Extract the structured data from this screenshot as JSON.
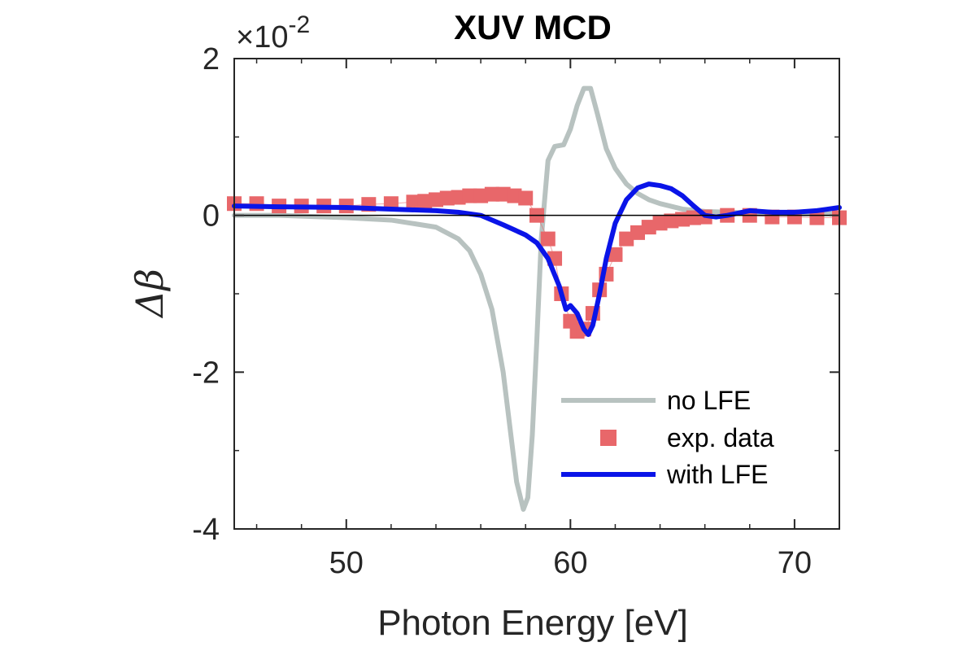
{
  "chart_data": {
    "type": "line",
    "title": "XUV MCD",
    "xlabel": "Photon Energy [eV]",
    "ylabel": "Δβ",
    "y_exponent_base": "×10",
    "y_exponent_power": "-2",
    "xlim": [
      45,
      72
    ],
    "ylim": [
      -4,
      2
    ],
    "xticks": [
      50,
      60,
      70
    ],
    "xtick_labels": [
      "50",
      "60",
      "70"
    ],
    "yticks": [
      2,
      0,
      -2,
      -4
    ],
    "ytick_labels": [
      "2",
      "0",
      "-2",
      "-4"
    ],
    "grid": false,
    "legend_position": "bottom-right",
    "zero_line": true,
    "series": [
      {
        "name": "no LFE",
        "style": "line",
        "color": "#b8c2c0",
        "x": [
          45,
          47,
          50,
          52,
          54,
          55,
          55.5,
          56,
          56.5,
          57,
          57.3,
          57.6,
          57.9,
          58.1,
          58.3,
          58.5,
          58.7,
          59.0,
          59.3,
          59.7,
          60.0,
          60.3,
          60.6,
          60.9,
          61.2,
          61.6,
          62.0,
          62.5,
          63.0,
          63.5,
          64.0,
          65.0,
          66.0,
          68.0,
          70.0,
          72.0
        ],
        "y": [
          0.0,
          0.0,
          -0.03,
          -0.06,
          -0.15,
          -0.3,
          -0.45,
          -0.75,
          -1.2,
          -2.0,
          -2.7,
          -3.4,
          -3.75,
          -3.6,
          -2.8,
          -1.6,
          -0.3,
          0.7,
          0.88,
          0.9,
          1.1,
          1.4,
          1.62,
          1.62,
          1.3,
          0.85,
          0.6,
          0.4,
          0.28,
          0.2,
          0.15,
          0.08,
          0.05,
          0.03,
          0.02,
          0.02
        ]
      },
      {
        "name": "exp. data",
        "style": "markers",
        "color": "#e8676a",
        "x": [
          45,
          46,
          47,
          48,
          49,
          50,
          51,
          52,
          53,
          53.5,
          54,
          54.5,
          55,
          55.5,
          56,
          56.5,
          57,
          57.5,
          58,
          58.5,
          59,
          59.3,
          59.6,
          60.0,
          60.3,
          60.6,
          61.0,
          61.3,
          61.6,
          62,
          62.5,
          63,
          63.5,
          64,
          64.5,
          65,
          65.5,
          66,
          67,
          68,
          69,
          70,
          71,
          72
        ],
        "y": [
          0.15,
          0.15,
          0.12,
          0.12,
          0.12,
          0.12,
          0.14,
          0.15,
          0.17,
          0.18,
          0.2,
          0.22,
          0.23,
          0.25,
          0.25,
          0.27,
          0.27,
          0.25,
          0.22,
          0.0,
          -0.3,
          -0.55,
          -1.0,
          -1.35,
          -1.48,
          -1.45,
          -1.25,
          -0.95,
          -0.75,
          -0.5,
          -0.3,
          -0.22,
          -0.15,
          -0.1,
          -0.07,
          -0.05,
          -0.03,
          -0.02,
          0.0,
          0.0,
          -0.02,
          -0.02,
          -0.03,
          -0.03
        ]
      },
      {
        "name": "with LFE",
        "style": "line",
        "color": "#0a14e8",
        "x": [
          45,
          47,
          50,
          52,
          54,
          55,
          56,
          57,
          58,
          58.5,
          59,
          59.5,
          59.8,
          60.0,
          60.3,
          60.6,
          60.8,
          61.0,
          61.3,
          61.6,
          62.0,
          62.5,
          63.0,
          63.5,
          64.0,
          64.5,
          65.0,
          65.5,
          66.0,
          66.5,
          67.0,
          68.0,
          69.0,
          70.0,
          71.0,
          72.0
        ],
        "y": [
          0.12,
          0.11,
          0.1,
          0.08,
          0.06,
          0.04,
          0.0,
          -0.12,
          -0.25,
          -0.35,
          -0.55,
          -0.9,
          -1.2,
          -1.15,
          -1.25,
          -1.45,
          -1.52,
          -1.4,
          -1.0,
          -0.55,
          -0.1,
          0.2,
          0.35,
          0.4,
          0.38,
          0.34,
          0.25,
          0.12,
          0.0,
          -0.02,
          0.0,
          0.06,
          0.04,
          0.04,
          0.06,
          0.1
        ]
      }
    ]
  }
}
